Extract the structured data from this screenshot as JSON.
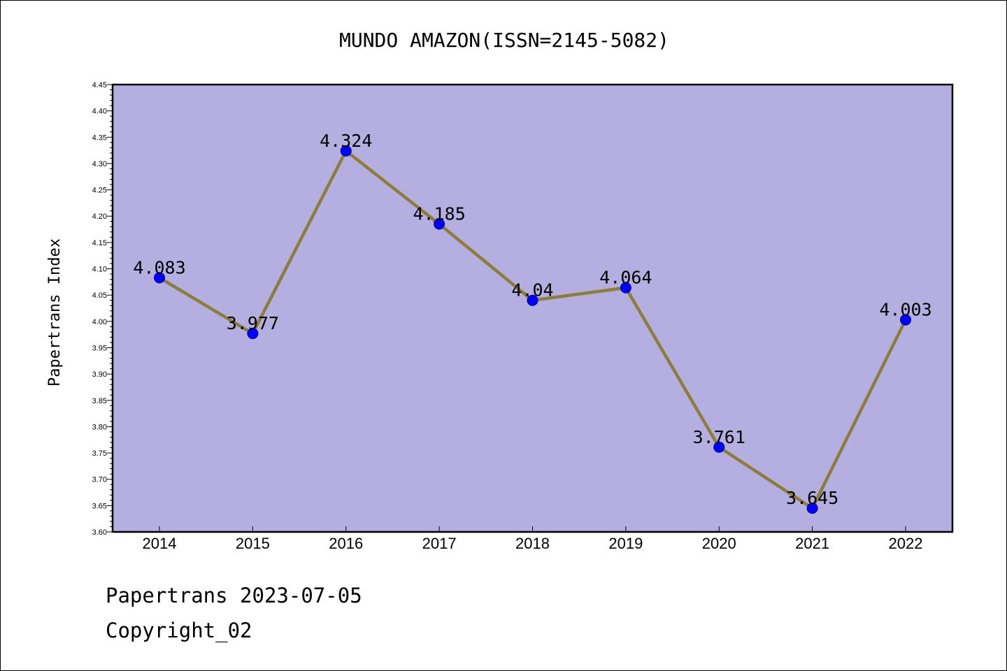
{
  "chart_data": {
    "type": "line",
    "title": "MUNDO AMAZON(ISSN=2145-5082)",
    "xlabel": "",
    "ylabel": "Papertrans Index",
    "categories": [
      "2014",
      "2015",
      "2016",
      "2017",
      "2018",
      "2019",
      "2020",
      "2021",
      "2022"
    ],
    "values": [
      4.083,
      3.977,
      4.324,
      4.185,
      4.04,
      4.064,
      3.761,
      3.645,
      4.003
    ],
    "data_labels": [
      "4.083",
      "3.977",
      "4.324",
      "4.185",
      "4.04",
      "4.064",
      "3.761",
      "3.645",
      "4.003"
    ],
    "ylim": [
      3.6,
      4.45
    ],
    "yticks": [
      "3.60",
      "3.65",
      "3.70",
      "3.75",
      "3.80",
      "3.85",
      "3.90",
      "3.95",
      "4.00",
      "4.05",
      "4.10",
      "4.15",
      "4.20",
      "4.25",
      "4.30",
      "4.35",
      "4.40",
      "4.45"
    ],
    "grid": false,
    "legend": "none",
    "colors": {
      "plot_background": "#b5aee0",
      "line": "#8b7d3a",
      "marker_fill": "#0000ff",
      "marker_edge": "#00008b"
    }
  },
  "footer": {
    "line1": "Papertrans 2023-07-05",
    "line2": "Copyright_02"
  }
}
